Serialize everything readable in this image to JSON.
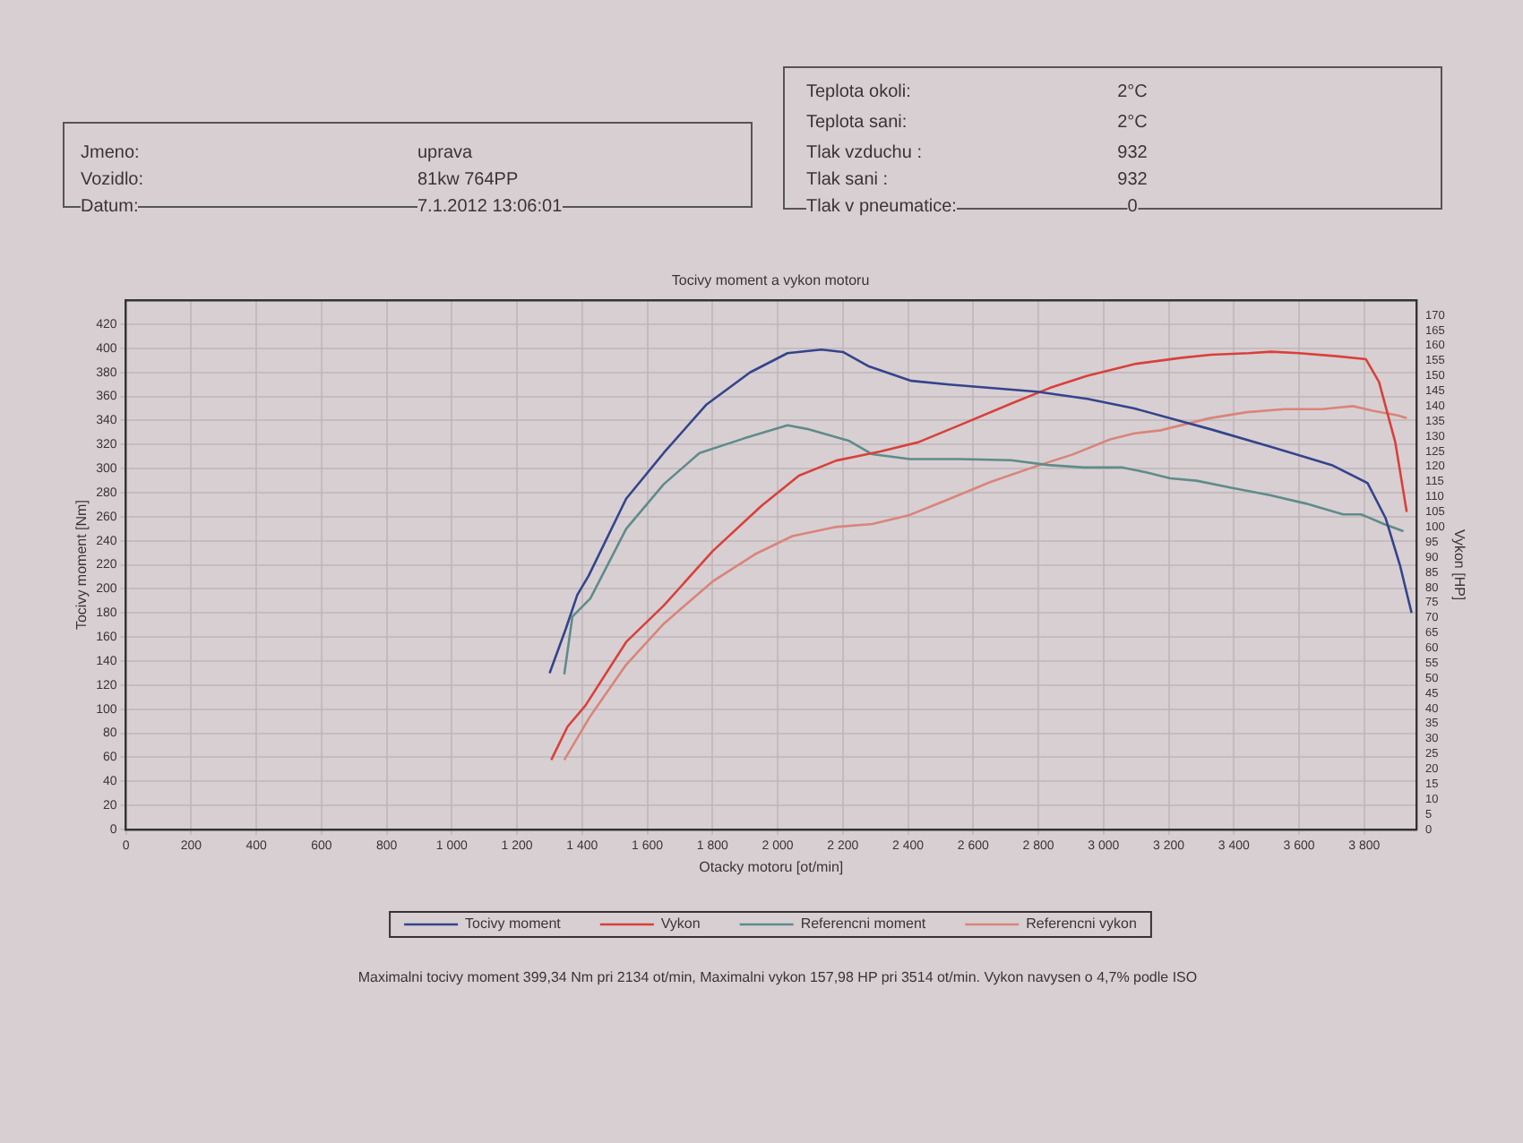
{
  "chart_data": {
    "type": "line",
    "title": "Tocivy moment a vykon motoru",
    "xlabel": "Otacky motoru [ot/min]",
    "ylabel": "Tocivy moment [Nm]",
    "y2label": "Vykon [HP]",
    "xlim": [
      0,
      3960
    ],
    "ylim": [
      0,
      440
    ],
    "y2lim": [
      0,
      175
    ],
    "xticks": [
      0,
      200,
      400,
      600,
      800,
      {
        "value": 1000,
        "label": "1 000"
      },
      {
        "value": 1200,
        "label": "1 200"
      },
      {
        "value": 1400,
        "label": "1 400"
      },
      {
        "value": 1600,
        "label": "1 600"
      },
      {
        "value": 1800,
        "label": "1 800"
      },
      {
        "value": 2000,
        "label": "2 000"
      },
      {
        "value": 2200,
        "label": "2 200"
      },
      {
        "value": 2400,
        "label": "2 400"
      },
      {
        "value": 2600,
        "label": "2 600"
      },
      {
        "value": 2800,
        "label": "2 800"
      },
      {
        "value": 3000,
        "label": "3 000"
      },
      {
        "value": 3200,
        "label": "3 200"
      },
      {
        "value": 3400,
        "label": "3 400"
      },
      {
        "value": 3600,
        "label": "3 600"
      },
      {
        "value": 3800,
        "label": "3 800"
      }
    ],
    "yticks": [
      0,
      20,
      40,
      60,
      80,
      100,
      120,
      140,
      160,
      180,
      200,
      220,
      240,
      260,
      280,
      300,
      320,
      340,
      360,
      380,
      400,
      420
    ],
    "y2ticks": [
      0,
      5,
      10,
      15,
      20,
      25,
      30,
      35,
      40,
      45,
      50,
      55,
      60,
      65,
      70,
      75,
      80,
      85,
      90,
      95,
      100,
      105,
      110,
      115,
      120,
      125,
      130,
      135,
      140,
      145,
      150,
      155,
      160,
      165,
      170
    ],
    "grid": true,
    "legend": "bottom",
    "series": [
      {
        "name": "Tocivy moment",
        "color": "#34448c",
        "axis": "y",
        "x": [
          1300,
          1350,
          1385,
          1420,
          1535,
          1650,
          1780,
          1915,
          2030,
          2134,
          2200,
          2280,
          2410,
          2525,
          2660,
          2795,
          2950,
          3095,
          3230,
          3325,
          3515,
          3700,
          3810,
          3865,
          3910,
          3945
        ],
        "values": [
          130,
          167,
          195,
          211,
          275,
          313,
          353,
          380,
          396,
          399,
          397,
          385,
          373,
          370,
          367,
          364,
          358,
          350,
          340,
          333,
          318,
          303,
          288,
          259,
          219,
          180
        ]
      },
      {
        "name": "Vykon",
        "color": "#d8413a",
        "axis": "y2",
        "x": [
          1305,
          1355,
          1410,
          1535,
          1650,
          1800,
          1950,
          2065,
          2180,
          2315,
          2430,
          2565,
          2720,
          2835,
          2950,
          3100,
          3240,
          3330,
          3445,
          3514,
          3600,
          3715,
          3805,
          3845,
          3895,
          3930
        ],
        "values": [
          23,
          34,
          41,
          62,
          74,
          92,
          107,
          117,
          122,
          125,
          128,
          134,
          141,
          146,
          150,
          154,
          156,
          157,
          157.5,
          158,
          157.5,
          156.5,
          155.5,
          148,
          128,
          105
        ]
      },
      {
        "name": "Referencni moment",
        "color": "#5f8c8a",
        "axis": "y",
        "x": [
          1345,
          1370,
          1425,
          1535,
          1650,
          1760,
          1895,
          2030,
          2090,
          2220,
          2290,
          2405,
          2560,
          2715,
          2830,
          2940,
          3055,
          3130,
          3205,
          3285,
          3395,
          3510,
          3620,
          3735,
          3790,
          3860,
          3920
        ],
        "values": [
          129,
          177,
          192,
          250,
          287,
          313,
          325,
          336,
          333,
          323,
          312,
          308,
          308,
          307,
          303,
          301,
          301,
          297,
          292,
          290,
          284,
          278,
          271,
          262,
          262,
          254,
          248
        ]
      },
      {
        "name": "Referencni vykon",
        "color": "#d9857a",
        "axis": "y2",
        "x": [
          1345,
          1425,
          1535,
          1650,
          1800,
          1930,
          2045,
          2175,
          2290,
          2405,
          2520,
          2655,
          2790,
          2905,
          3020,
          3095,
          3175,
          3250,
          3325,
          3440,
          3555,
          3670,
          3765,
          3825,
          3900,
          3930
        ],
        "values": [
          23,
          37.5,
          54.5,
          68,
          82,
          91,
          97,
          100,
          101,
          104,
          109,
          115,
          120,
          124,
          129,
          131,
          132,
          134,
          136,
          138,
          139,
          139,
          140,
          138.5,
          137,
          136
        ]
      }
    ],
    "annotations": [
      "Jmeno:",
      "uprava",
      "Vozidlo:",
      "81kw  764PP",
      "Datum:",
      "7.1.2012 13:06:01",
      "Teplota okoli:",
      "2°C",
      "Teplota sani:",
      "2°C",
      "Tlak vzduchu :",
      "932",
      "Tlak sani :",
      "932",
      "Tlak v pneumatice:",
      "0",
      "Maximalni tocivy moment 399,34 Nm pri 2134 ot/min,  Maximalni vykon 157,98 HP pri 3514 ot/min.  Vykon navysen o 4,7% podle ISO"
    ]
  }
}
